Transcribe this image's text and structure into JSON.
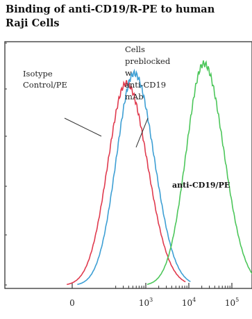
{
  "chart_data": {
    "type": "line",
    "title_lines": [
      "Binding of anti-CD19/R-PE to human",
      "Raji Cells"
    ],
    "xlabel": "",
    "ylabel": "",
    "x_scale": "biexponential",
    "x_ticks": [
      {
        "value": 0,
        "base": "0",
        "exp": ""
      },
      {
        "value": 1000,
        "base": "10",
        "exp": "3"
      },
      {
        "value": 10000,
        "base": "10",
        "exp": "4"
      },
      {
        "value": 100000,
        "base": "10",
        "exp": "5"
      }
    ],
    "grid": false,
    "legend": "none",
    "series": [
      {
        "color": "#e03a4e",
        "peak_decade": 2.55,
        "width": 0.21,
        "height": 0.83
      },
      {
        "color": "#3d9fd4",
        "peak_decade": 2.73,
        "width": 0.2,
        "height": 0.87
      },
      {
        "color": "#4cc65a",
        "peak_decade": 4.35,
        "width": 0.2,
        "height": 0.91
      }
    ],
    "annotations": [
      {
        "id": "isotype",
        "lines": [
          "Isotype",
          "Control/PE"
        ],
        "style": "normal"
      },
      {
        "id": "preblocked",
        "lines": [
          "Cells",
          "preblocked",
          "w",
          "anti-CD19",
          "mAb"
        ],
        "style": "normal"
      },
      {
        "id": "antipe",
        "lines": [
          "anti-CD19/PE"
        ],
        "style": "bold"
      }
    ]
  }
}
